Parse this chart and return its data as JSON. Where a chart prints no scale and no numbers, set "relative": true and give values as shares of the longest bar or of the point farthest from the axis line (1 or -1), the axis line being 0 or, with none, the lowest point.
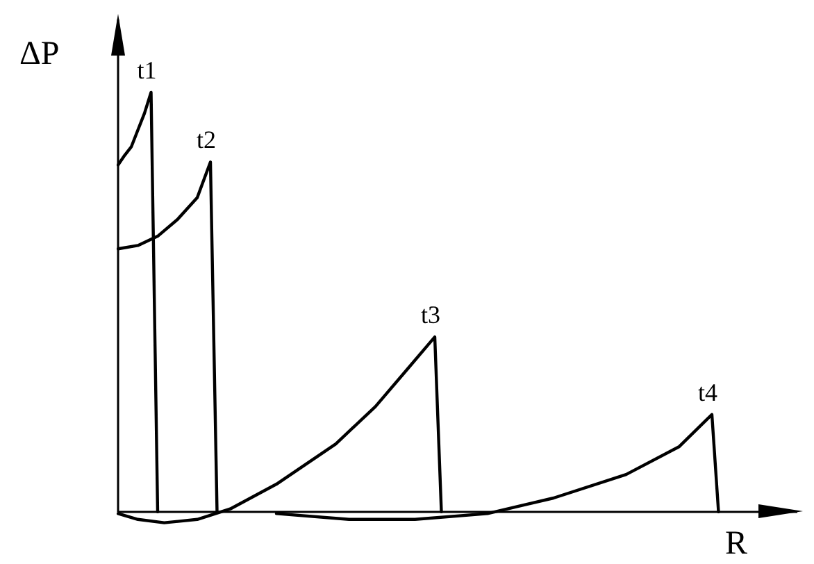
{
  "chart_data": {
    "type": "line",
    "relative": true,
    "xlabel": "R",
    "ylabel": "ΔP",
    "legend": false,
    "marker": "none",
    "line_style": "solid",
    "categories": [
      null,
      null,
      null,
      null,
      null,
      null,
      null,
      null,
      null,
      null,
      null,
      null,
      null,
      null,
      null,
      null,
      null,
      null,
      null,
      null,
      null,
      null,
      null,
      null,
      null,
      null,
      null,
      null,
      null,
      null,
      null,
      null,
      null,
      null,
      null,
      null,
      null,
      null,
      null,
      null,
      null,
      null,
      null,
      null,
      null,
      null,
      null,
      null,
      null,
      null,
      null,
      null,
      null,
      null,
      null,
      null,
      null,
      null,
      null,
      null,
      null,
      null,
      null,
      null,
      null,
      null,
      null,
      null,
      null,
      null,
      null,
      null,
      null,
      null,
      null,
      null,
      null,
      null,
      null,
      null,
      null,
      null,
      null,
      null,
      null,
      null,
      null,
      null,
      null,
      null,
      null,
      null,
      null,
      null,
      null,
      null,
      null,
      null,
      null,
      null,
      null
    ],
    "series": [
      {
        "color": "#000000",
        "values": [
          0.827,
          0.85,
          0.87,
          0.91,
          0.95,
          1,
          0,
          null,
          null,
          null,
          null,
          null,
          null,
          null,
          null,
          null,
          null,
          null,
          null,
          null,
          null,
          null,
          null,
          null,
          null,
          null,
          null,
          null,
          null,
          null,
          null,
          null,
          null,
          null,
          null,
          null,
          null,
          null,
          null,
          null,
          null,
          null,
          null,
          null,
          null,
          null,
          null,
          null,
          null,
          null,
          null,
          null,
          null,
          null,
          null,
          null,
          null,
          null,
          null,
          null,
          null,
          null,
          null,
          null,
          null,
          null,
          null,
          null,
          null,
          null,
          null,
          null,
          null,
          null,
          null,
          null,
          null,
          null,
          null,
          null,
          null,
          null,
          null,
          null,
          null,
          null,
          null,
          null,
          null,
          null,
          null,
          null,
          null,
          null,
          null,
          null,
          null,
          null,
          null,
          null,
          null
        ]
      },
      {
        "color": "#000000",
        "values": [
          0.627,
          null,
          null,
          0.635,
          null,
          null,
          0.657,
          null,
          null,
          0.697,
          null,
          null,
          0.749,
          null,
          0.834,
          0,
          null,
          null,
          null,
          null,
          null,
          null,
          null,
          null,
          null,
          null,
          null,
          null,
          null,
          null,
          null,
          null,
          null,
          null,
          null,
          null,
          null,
          null,
          null,
          null,
          null,
          null,
          null,
          null,
          null,
          null,
          null,
          null,
          null,
          null,
          null,
          null,
          null,
          null,
          null,
          null,
          null,
          null,
          null,
          null,
          null,
          null,
          null,
          null,
          null,
          null,
          null,
          null,
          null,
          null,
          null,
          null,
          null,
          null,
          null,
          null,
          null,
          null,
          null,
          null,
          null,
          null,
          null,
          null,
          null,
          null,
          null,
          null,
          null,
          null,
          null,
          null,
          null,
          null,
          null,
          null,
          null,
          null,
          null,
          null,
          null
        ]
      },
      {
        "color": "#000000",
        "values": [
          -0.004,
          null,
          null,
          -0.018,
          null,
          null,
          null,
          -0.026,
          null,
          null,
          null,
          null,
          -0.018,
          null,
          null,
          null,
          null,
          0.007,
          null,
          null,
          null,
          null,
          null,
          null,
          0.066,
          null,
          null,
          null,
          null,
          null,
          null,
          null,
          null,
          0.162,
          null,
          null,
          null,
          null,
          null,
          0.251,
          null,
          null,
          null,
          null,
          0.343,
          null,
          null,
          null,
          0.417,
          0,
          null,
          null,
          null,
          null,
          null,
          null,
          null,
          null,
          null,
          null,
          null,
          null,
          null,
          null,
          null,
          null,
          null,
          null,
          null,
          null,
          null,
          null,
          null,
          null,
          null,
          null,
          null,
          null,
          null,
          null,
          null,
          null,
          null,
          null,
          null,
          null,
          null,
          null,
          null,
          null,
          null,
          null,
          null,
          null,
          null,
          null,
          null,
          null,
          null,
          null,
          null
        ]
      },
      {
        "color": "#000000",
        "values": [
          null,
          null,
          null,
          null,
          null,
          null,
          null,
          null,
          null,
          null,
          null,
          null,
          null,
          null,
          null,
          null,
          null,
          null,
          null,
          null,
          null,
          null,
          null,
          null,
          -0.004,
          null,
          null,
          null,
          null,
          null,
          null,
          null,
          null,
          null,
          null,
          -0.018,
          null,
          null,
          null,
          null,
          null,
          null,
          null,
          null,
          null,
          -0.018,
          null,
          null,
          null,
          null,
          null,
          null,
          null,
          null,
          null,
          null,
          -0.004,
          null,
          null,
          null,
          null,
          null,
          null,
          null,
          null,
          null,
          0.033,
          null,
          null,
          null,
          null,
          null,
          null,
          null,
          null,
          null,
          null,
          0.089,
          null,
          null,
          null,
          null,
          null,
          null,
          null,
          0.155,
          null,
          null,
          null,
          null,
          0.232,
          0,
          null,
          null,
          null,
          null,
          null,
          null,
          null,
          null,
          null
        ]
      }
    ],
    "annotations": [
      "t1",
      "t2",
      "t3",
      "t4"
    ]
  }
}
